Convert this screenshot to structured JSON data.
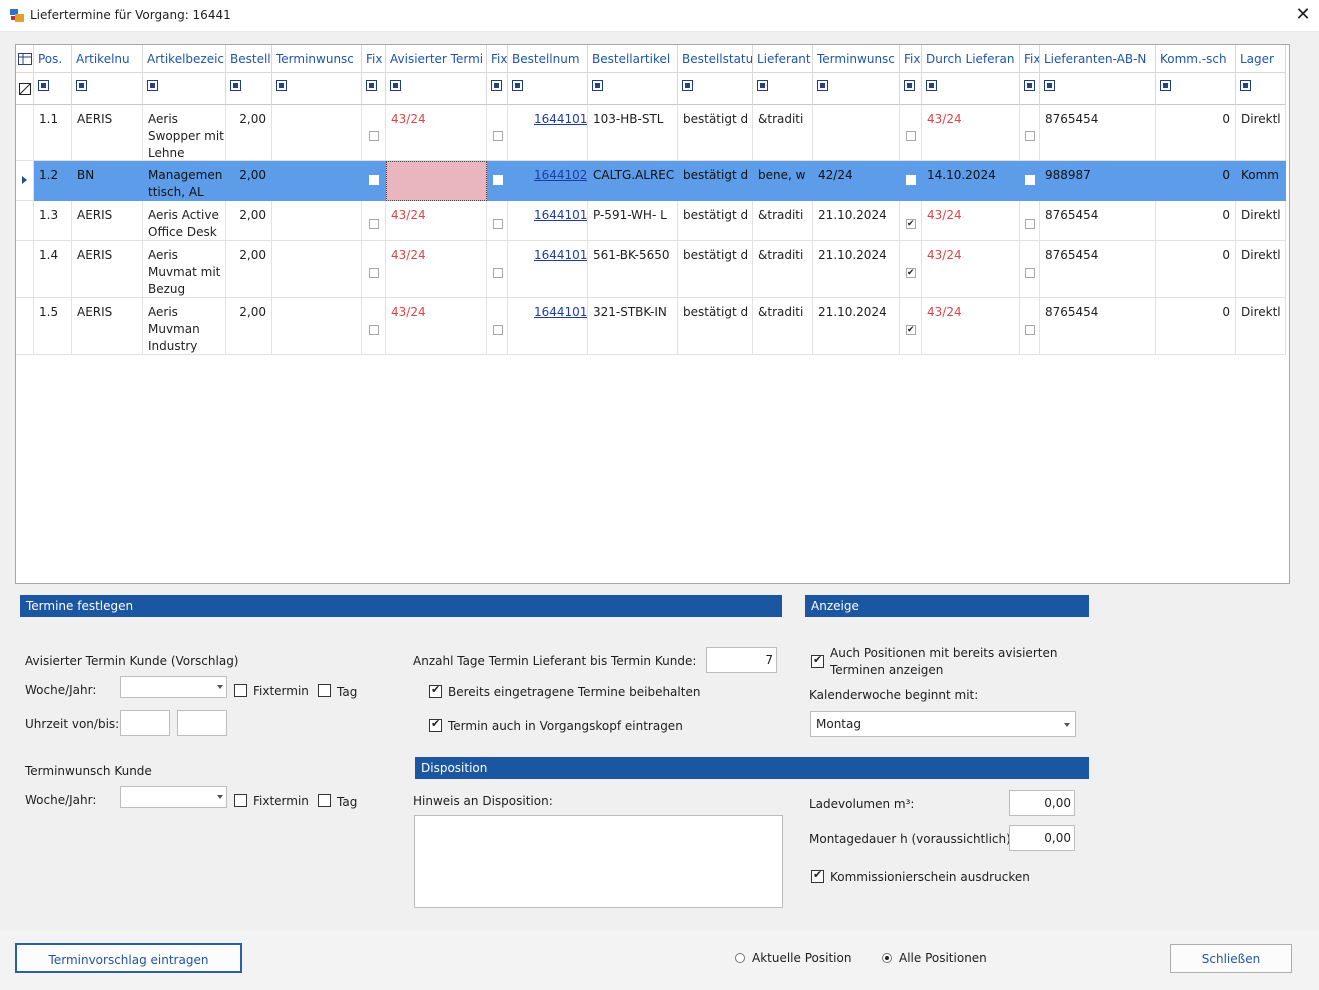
{
  "window": {
    "title": "Liefertermine für Vorgang: 16441",
    "close_label": "✕"
  },
  "grid": {
    "columns": [
      {
        "key": "pos",
        "label": "Pos."
      },
      {
        "key": "artnr",
        "label": "Artikelnu"
      },
      {
        "key": "artbez",
        "label": "Artikelbezeic"
      },
      {
        "key": "bestell",
        "label": "Bestell"
      },
      {
        "key": "terminwunsch",
        "label": "Terminwunsc"
      },
      {
        "key": "fix1",
        "label": "Fix"
      },
      {
        "key": "avisiert",
        "label": "Avisierter Termi"
      },
      {
        "key": "fix2",
        "label": "Fix"
      },
      {
        "key": "bestellnum",
        "label": "Bestellnum"
      },
      {
        "key": "bestellartikel",
        "label": "Bestellartikel"
      },
      {
        "key": "bestellstatus",
        "label": "Bestellstatu"
      },
      {
        "key": "lieferant",
        "label": "Lieferant"
      },
      {
        "key": "terminwunsch2",
        "label": "Terminwunsc"
      },
      {
        "key": "fix3",
        "label": "Fix"
      },
      {
        "key": "durchlieferant",
        "label": "Durch Lieferan"
      },
      {
        "key": "fix4",
        "label": "Fix"
      },
      {
        "key": "abnr",
        "label": "Lieferanten-AB-N"
      },
      {
        "key": "komm",
        "label": "Komm.-sch"
      },
      {
        "key": "lager",
        "label": "Lager"
      }
    ],
    "rows": [
      {
        "pos": "1.1",
        "artnr": "AERIS",
        "artbez": "Aeris Swopper mit Lehne",
        "bestell": "2,00",
        "terminwunsch": "",
        "fix1": false,
        "avisiert": "43/24",
        "fix2": false,
        "bestellnum": "1644101",
        "bestellartikel": "103-HB-STL",
        "bestellstatus": "bestätigt d",
        "lieferant": "&traditi",
        "terminwunsch2": "",
        "fix3": false,
        "durchlieferant": "43/24",
        "fix4": false,
        "abnr": "8765454",
        "komm": "0",
        "lager": "Direktl",
        "selected": false
      },
      {
        "pos": "1.2",
        "artnr": "BN",
        "artbez": "Managemen ttisch, AL",
        "bestell": "2,00",
        "terminwunsch": "",
        "fix1": false,
        "avisiert": "",
        "fix2": false,
        "bestellnum": "1644102",
        "bestellartikel": "CALTG.ALREC",
        "bestellstatus": "bestätigt d",
        "lieferant": "bene, w",
        "terminwunsch2": "42/24",
        "fix3": false,
        "durchlieferant": "14.10.2024",
        "fix4": false,
        "abnr": "988987",
        "komm": "0",
        "lager": "Komm",
        "selected": true
      },
      {
        "pos": "1.3",
        "artnr": "AERIS",
        "artbez": "Aeris Active Office Desk",
        "bestell": "2,00",
        "terminwunsch": "",
        "fix1": false,
        "avisiert": "43/24",
        "fix2": false,
        "bestellnum": "1644101",
        "bestellartikel": "P-591-WH- L",
        "bestellstatus": "bestätigt d",
        "lieferant": "&traditi",
        "terminwunsch2": "21.10.2024",
        "fix3": true,
        "durchlieferant": "43/24",
        "fix4": false,
        "abnr": "8765454",
        "komm": "0",
        "lager": "Direktl",
        "selected": false
      },
      {
        "pos": "1.4",
        "artnr": "AERIS",
        "artbez": "Aeris Muvmat mit Bezug",
        "bestell": "2,00",
        "terminwunsch": "",
        "fix1": false,
        "avisiert": "43/24",
        "fix2": false,
        "bestellnum": "1644101",
        "bestellartikel": "561-BK-5650",
        "bestellstatus": "bestätigt d",
        "lieferant": "&traditi",
        "terminwunsch2": "21.10.2024",
        "fix3": true,
        "durchlieferant": "43/24",
        "fix4": false,
        "abnr": "8765454",
        "komm": "0",
        "lager": "Direktl",
        "selected": false
      },
      {
        "pos": "1.5",
        "artnr": "AERIS",
        "artbez": "Aeris Muvman Industry",
        "bestell": "2,00",
        "terminwunsch": "",
        "fix1": false,
        "avisiert": "43/24",
        "fix2": false,
        "bestellnum": "1644101",
        "bestellartikel": "321-STBK-IN",
        "bestellstatus": "bestätigt d",
        "lieferant": "&traditi",
        "terminwunsch2": "21.10.2024",
        "fix3": true,
        "durchlieferant": "43/24",
        "fix4": false,
        "abnr": "8765454",
        "komm": "0",
        "lager": "Direktl",
        "selected": false
      }
    ]
  },
  "termine": {
    "header": "Termine festlegen",
    "avisiert_label": "Avisierter Termin Kunde (Vorschlag)",
    "woche_jahr_label": "Woche/Jahr:",
    "fixtermin_label": "Fixtermin",
    "tag_label": "Tag",
    "uhrzeit_label": "Uhrzeit von/bis:",
    "terminwunsch_label": "Terminwunsch Kunde",
    "woche_jahr_label2": "Woche/Jahr:",
    "fixtermin_label2": "Fixtermin",
    "tag_label2": "Tag",
    "anzahl_tage_label": "Anzahl Tage Termin Lieferant bis Termin Kunde:",
    "anzahl_tage_value": "7",
    "beibehalten_label": "Bereits eingetragene Termine beibehalten",
    "beibehalten_checked": true,
    "vorgangskopf_label": "Termin auch in Vorgangskopf eintragen",
    "vorgangskopf_checked": true
  },
  "anzeige": {
    "header": "Anzeige",
    "auch_positionen_label_1": "Auch Positionen mit bereits avisierten",
    "auch_positionen_label_2": "Terminen anzeigen",
    "auch_positionen_checked": true,
    "kw_label": "Kalenderwoche beginnt mit:",
    "kw_value": "Montag"
  },
  "disposition": {
    "header": "Disposition",
    "hinweis_label": "Hinweis an Disposition:",
    "hinweis_value": "",
    "ladevolumen_label": "Ladevolumen m³:",
    "ladevolumen_value": "0,00",
    "montagedauer_label": "Montagedauer h (voraussichtlich):",
    "montagedauer_value": "0,00",
    "kommissionierschein_label": "Kommissionierschein ausdrucken",
    "kommissionierschein_checked": true
  },
  "footer": {
    "terminvorschlag_button": "Terminvorschlag eintragen",
    "aktuelle_position_label": "Aktuelle Position",
    "alle_positionen_label": "Alle Positionen",
    "selected_scope": "alle",
    "schliessen_button": "Schließen"
  }
}
